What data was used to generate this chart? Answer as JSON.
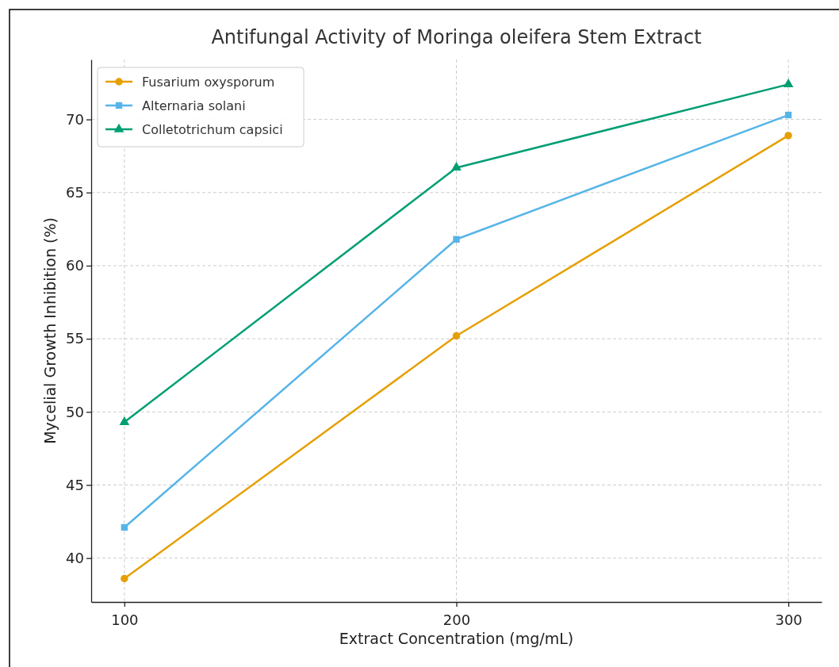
{
  "chart_data": {
    "type": "line",
    "title": "Antifungal Activity of Moringa oleifera Stem Extract",
    "xlabel": "Extract Concentration (mg/mL)",
    "ylabel": "Mycelial Growth Inhibition (%)",
    "x": [
      100,
      200,
      300
    ],
    "series": [
      {
        "name": "Fusarium oxysporum",
        "color": "#e69f00",
        "marker": "circle",
        "values": [
          38.6,
          55.2,
          68.9
        ]
      },
      {
        "name": "Alternaria solani",
        "color": "#56b4e9",
        "marker": "square",
        "values": [
          42.1,
          61.8,
          70.3
        ]
      },
      {
        "name": "Colletotrichum capsici",
        "color": "#009e73",
        "marker": "triangle",
        "values": [
          49.3,
          66.7,
          72.4
        ]
      }
    ],
    "xlim": [
      90,
      310
    ],
    "xticks": [
      100,
      200,
      300
    ],
    "ylim": [
      37,
      74.1
    ],
    "yticks": [
      40,
      45,
      50,
      55,
      60,
      65,
      70
    ],
    "grid": true,
    "legend": "top left",
    "line_style": "solid"
  }
}
